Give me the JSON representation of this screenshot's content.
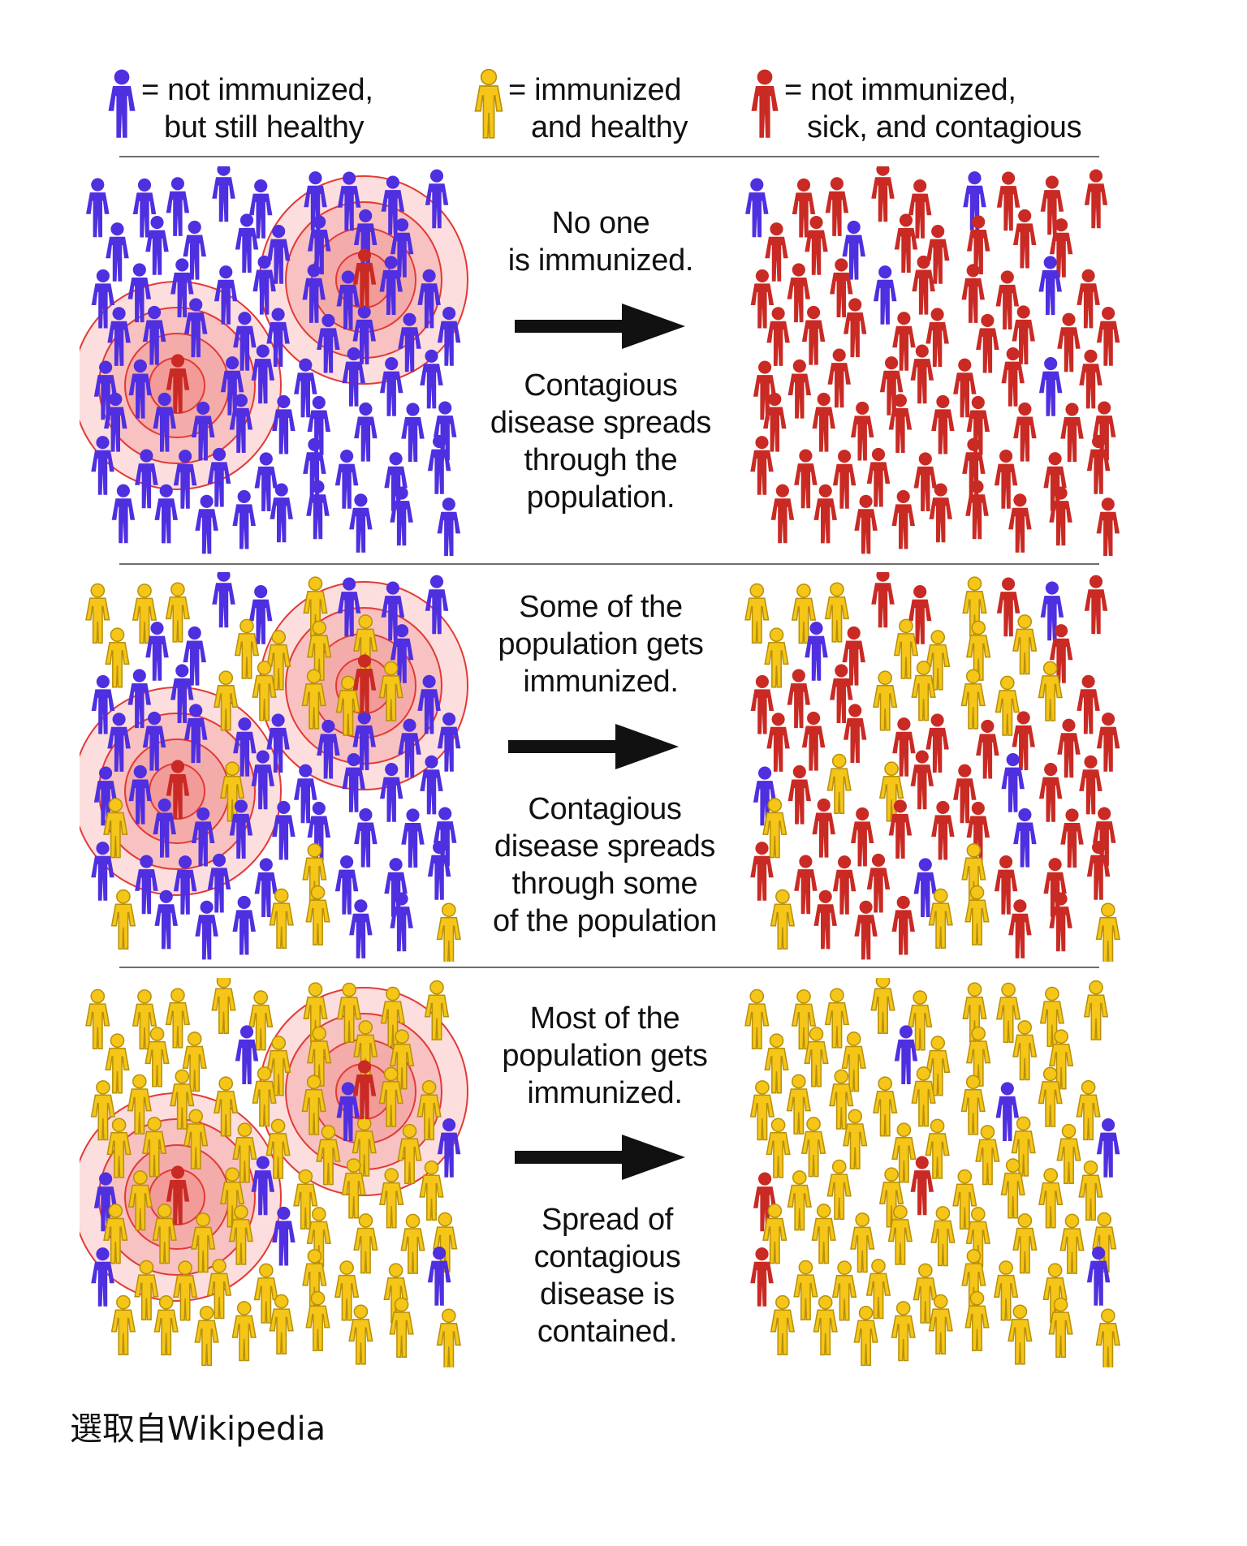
{
  "colors": {
    "not_immunized": "#4f2fe0",
    "immunized": "#f5c518",
    "sick": "#c92a24",
    "immunized_outline": "#b8900a",
    "ring_fill": "#f08a86",
    "ring_stroke": "#e23a36"
  },
  "icons": {
    "person": "person-icon",
    "arrow": "arrow-right-icon"
  },
  "legend": [
    {
      "line1": "= not immunized,",
      "line2": "but still healthy",
      "status": "not_immunized"
    },
    {
      "line1": "= immunized",
      "line2": "and healthy",
      "status": "immunized"
    },
    {
      "line1": "= not immunized,",
      "line2": "sick, and contagious",
      "status": "sick"
    }
  ],
  "scenarios": [
    {
      "top_text": [
        "No one",
        "is immunized."
      ],
      "bottom_text": [
        "Contagious",
        "disease spreads",
        "through the",
        "population."
      ],
      "before": {
        "immunized_share": 0.0,
        "sick_count": 2
      },
      "after": {
        "healthy_not_immunized_count": 6,
        "immunized_share": 0.0
      }
    },
    {
      "top_text": [
        "Some of the",
        "population gets",
        "immunized."
      ],
      "bottom_text": [
        "Contagious",
        "disease spreads",
        "through some",
        "of the population"
      ],
      "before": {
        "immunized_share": 0.2,
        "sick_count": 2
      },
      "after": {
        "healthy_not_immunized_count": 6,
        "immunized_share": 0.2
      }
    },
    {
      "top_text": [
        "Most of the",
        "population gets",
        "immunized."
      ],
      "bottom_text": [
        "Spread of",
        "contagious",
        "disease is",
        "contained."
      ],
      "before": {
        "immunized_share": 0.85,
        "sick_count": 2
      },
      "after": {
        "healthy_not_immunized_count": 4,
        "sick_count": 3,
        "immunized_share": 0.85
      }
    }
  ],
  "credit": "選取自Wikipedia"
}
